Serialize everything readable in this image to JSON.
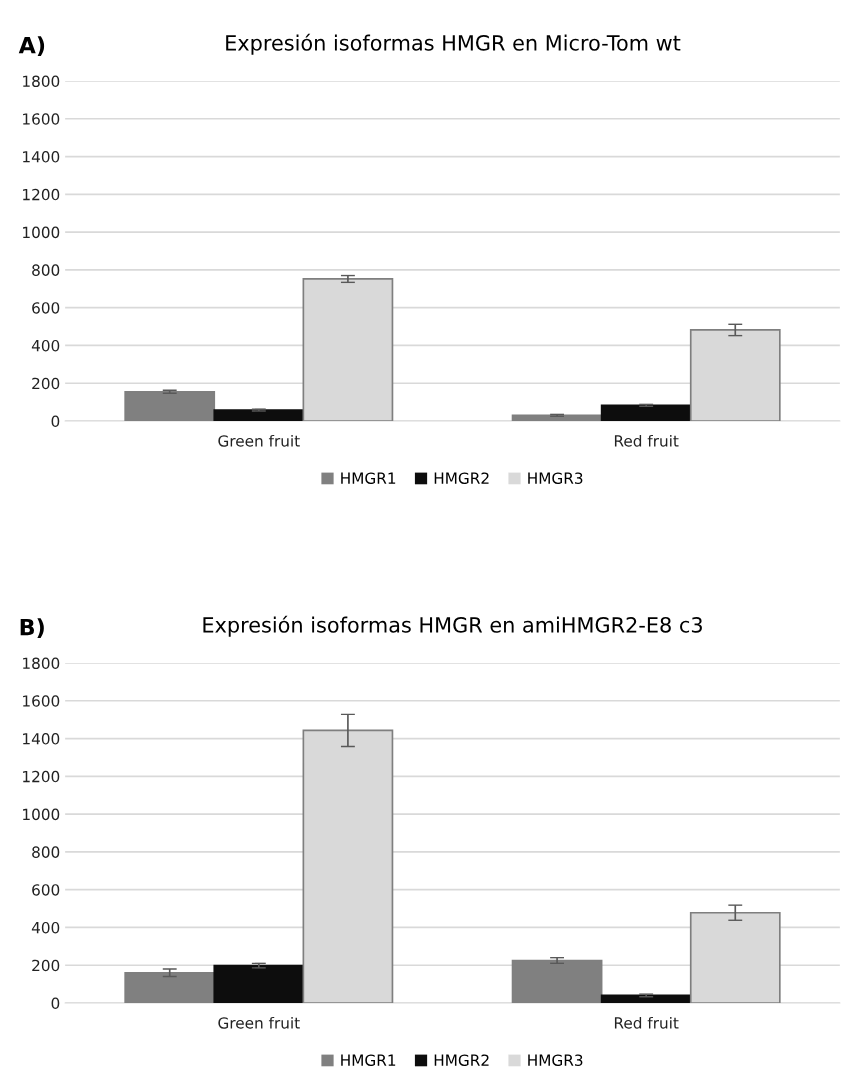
{
  "chart_data": [
    {
      "type": "bar",
      "title": "Expresión isoformas HMGR en Micro-Tom wt",
      "annotations": [
        "A)"
      ],
      "categories": [
        "Green fruit",
        "Red fruit"
      ],
      "series": [
        {
          "name": "HMGR1",
          "color": "#808080",
          "values": [
            155,
            30
          ],
          "errors": [
            8,
            5
          ]
        },
        {
          "name": "HMGR2",
          "color": "#0d0d0d",
          "values": [
            58,
            83
          ],
          "errors": [
            5,
            5
          ]
        },
        {
          "name": "HMGR3",
          "color": "#d9d9d9",
          "values": [
            752,
            482
          ],
          "errors": [
            18,
            30
          ]
        }
      ],
      "ylim": [
        0,
        1800
      ],
      "yticks": [
        0,
        200,
        400,
        600,
        800,
        1000,
        1200,
        1400,
        1600,
        1800
      ],
      "grid": "y",
      "legend": "bottom"
    },
    {
      "type": "bar",
      "title": "Expresión isoformas HMGR en amiHMGR2-E8 c3",
      "annotations": [
        "B)"
      ],
      "categories": [
        "Green fruit",
        "Red fruit"
      ],
      "series": [
        {
          "name": "HMGR1",
          "color": "#808080",
          "values": [
            160,
            225
          ],
          "errors": [
            20,
            15
          ]
        },
        {
          "name": "HMGR2",
          "color": "#0d0d0d",
          "values": [
            198,
            40
          ],
          "errors": [
            12,
            7
          ]
        },
        {
          "name": "HMGR3",
          "color": "#d9d9d9",
          "values": [
            1443,
            478
          ],
          "errors": [
            85,
            40
          ]
        }
      ],
      "ylim": [
        0,
        1800
      ],
      "yticks": [
        0,
        200,
        400,
        600,
        800,
        1000,
        1200,
        1400,
        1600,
        1800
      ],
      "grid": "y",
      "legend": "bottom"
    }
  ]
}
